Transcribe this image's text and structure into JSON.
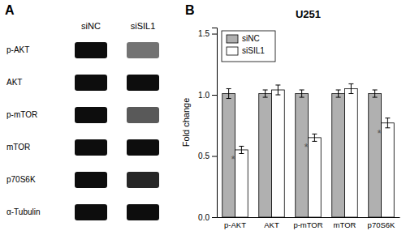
{
  "chart_data": [
    {
      "type": "blot",
      "annotations": [
        {
          "text": "A"
        }
      ],
      "categories": [
        "p-AKT",
        "AKT",
        "p-mTOR",
        "mTOR",
        "p70S6K",
        "α-Tubulin"
      ],
      "series": [
        {
          "name": "siNC",
          "colors": [
            "#0d0d0d",
            "#0d0d0d",
            "#0d0d0d",
            "#0d0d0d",
            "#0d0d0d",
            "#0d0d0d"
          ]
        },
        {
          "name": "siSIL1",
          "colors": [
            "#737373",
            "#0d0d0d",
            "#595959",
            "#0d0d0d",
            "#262626",
            "#0d0d0d"
          ]
        }
      ]
    },
    {
      "type": "bar",
      "title": "U251",
      "ylabel": "Fold change",
      "annotations": [
        {
          "text": "B"
        },
        {
          "text": "*",
          "category": "p-AKT"
        },
        {
          "text": "*",
          "category": "p-mTOR"
        },
        {
          "text": "*",
          "category": "p70S6K"
        }
      ],
      "categories": [
        "p-AKT",
        "AKT",
        "p-mTOR",
        "mTOR",
        "p70S6K"
      ],
      "series": [
        {
          "name": "siNC",
          "color": "#b0b0b0",
          "values": [
            1.01,
            1.01,
            1.01,
            1.01,
            1.01
          ],
          "errors": [
            0.04,
            0.03,
            0.03,
            0.03,
            0.03
          ]
        },
        {
          "name": "siSIL1",
          "color": "#ffffff",
          "values": [
            0.55,
            1.04,
            0.65,
            1.05,
            0.77
          ],
          "errors": [
            0.03,
            0.04,
            0.03,
            0.04,
            0.04
          ]
        }
      ],
      "ylim": [
        0.0,
        1.55
      ],
      "yticks": [
        {
          "value": 0.0,
          "label": "0.0"
        },
        0.5,
        {
          "value": 1.0,
          "label": "1.0"
        },
        1.5
      ],
      "legend": "upper left"
    }
  ]
}
